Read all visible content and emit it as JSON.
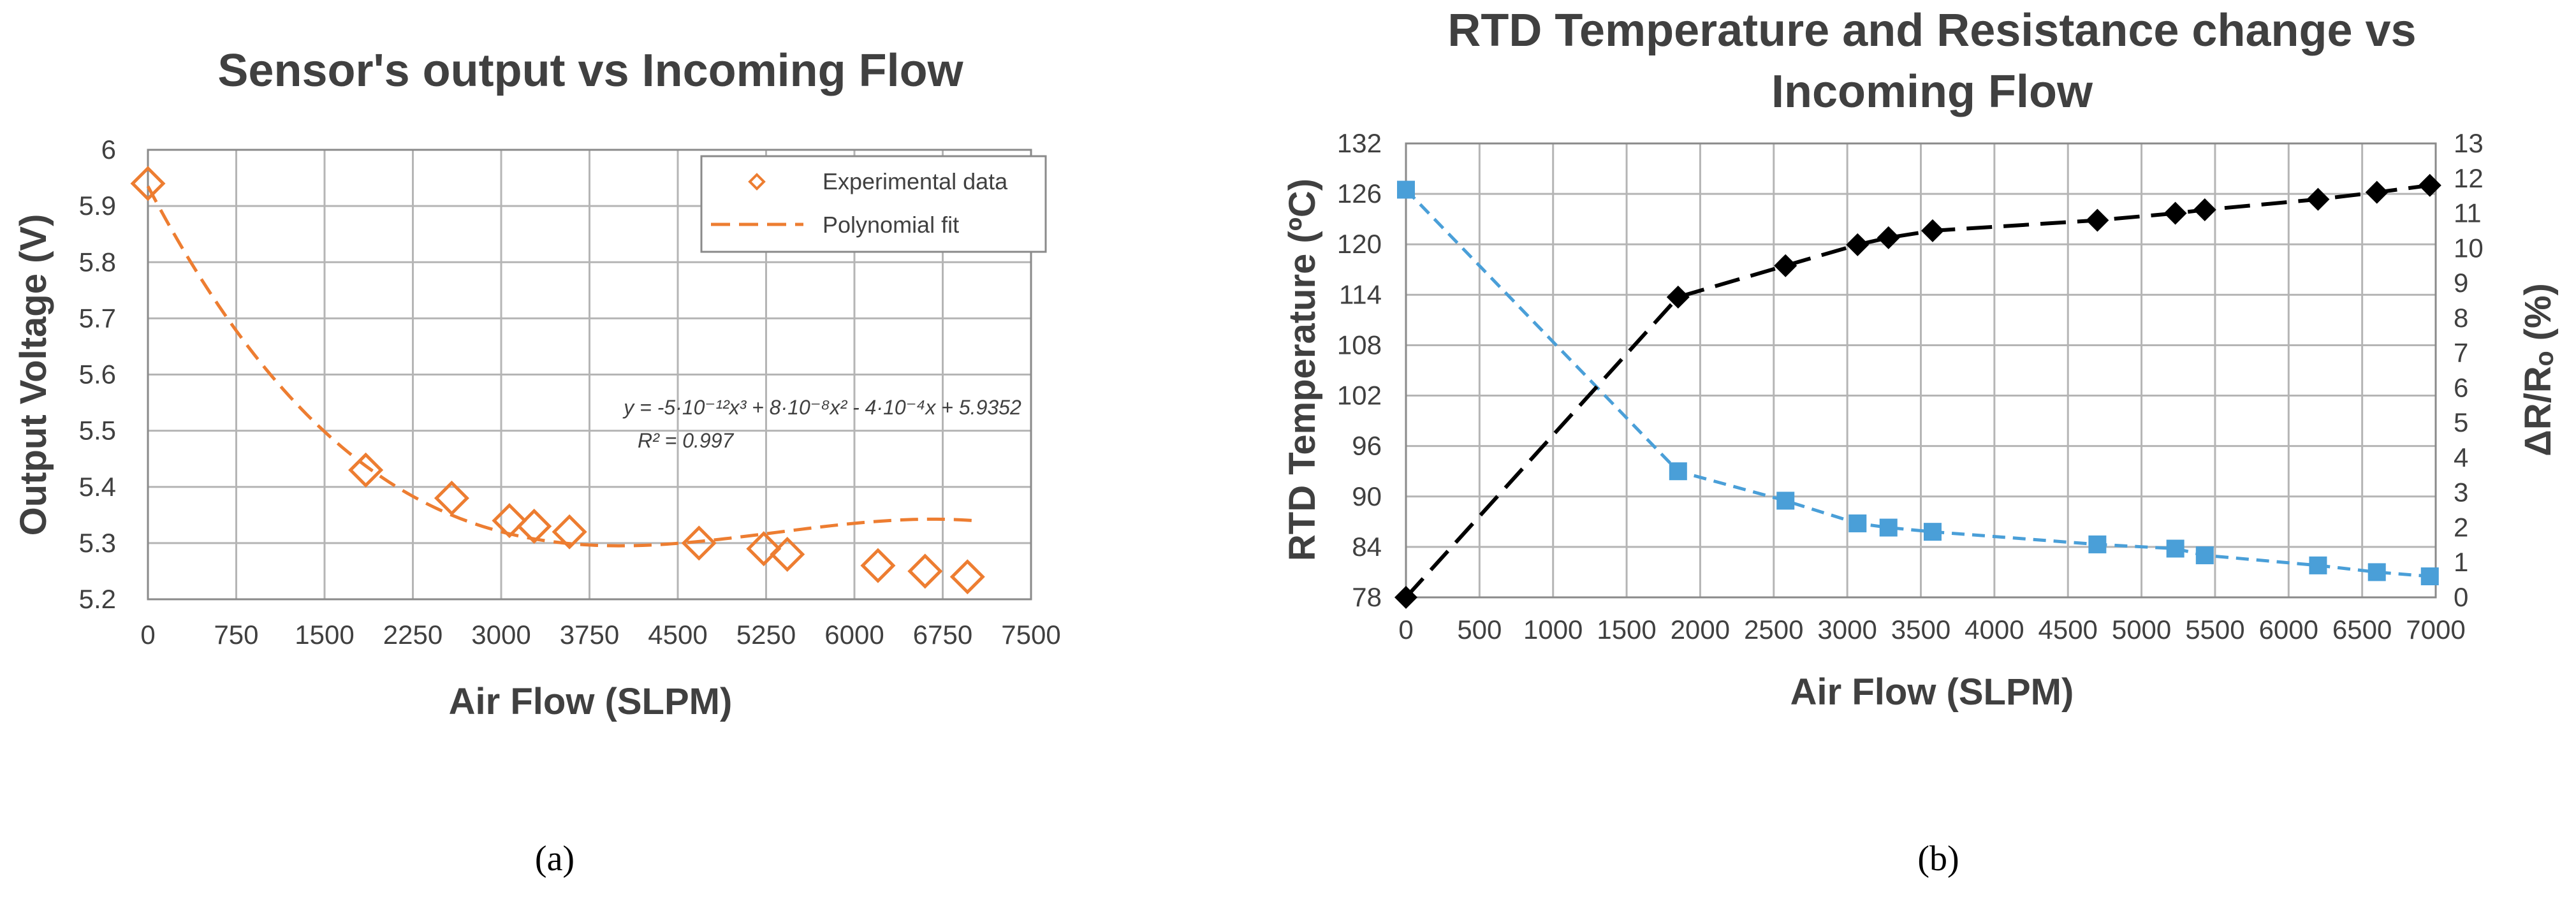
{
  "chart_data": [
    {
      "type": "scatter",
      "title": "Sensor's output vs Incoming Flow",
      "xlabel": "Air Flow (SLPM)",
      "ylabel": "Output Voltage (V)",
      "xlim": [
        0,
        7500
      ],
      "ylim": [
        5.2,
        6.0
      ],
      "x_ticks": [
        0,
        750,
        1500,
        2250,
        3000,
        3750,
        4500,
        5250,
        6000,
        6750,
        7500
      ],
      "x_tick_labels": [
        "0",
        "750",
        "1500",
        "2250",
        "3000",
        "3750",
        "4500",
        "5250",
        "6000",
        "6750",
        "7500"
      ],
      "y_ticks": [
        5.2,
        5.3,
        5.4,
        5.5,
        5.6,
        5.7,
        5.8,
        5.9,
        6.0
      ],
      "y_tick_labels": [
        "5.2",
        "5.3",
        "5.4",
        "5.5",
        "5.6",
        "5.7",
        "5.8",
        "5.9",
        "6"
      ],
      "grid": true,
      "legend_position": "top-right",
      "series": [
        {
          "name": "Experimental data",
          "kind": "markers",
          "marker": "open-diamond",
          "color": "#ED7D31",
          "x": [
            0,
            1850,
            2580,
            3070,
            3280,
            3580,
            4680,
            5230,
            5430,
            6200,
            6600,
            6960
          ],
          "y": [
            5.94,
            5.43,
            5.38,
            5.34,
            5.33,
            5.32,
            5.3,
            5.29,
            5.28,
            5.26,
            5.25,
            5.24
          ]
        },
        {
          "name": "Polynomial fit",
          "kind": "dashed-line",
          "color": "#ED7D31",
          "coefficients": [
            5.9352,
            -0.0004,
            8e-08,
            -5e-12
          ],
          "x_range": [
            0,
            7000
          ]
        }
      ],
      "annotations": {
        "equation": "y = -5·10⁻¹²x³ + 8·10⁻⁸x² - 4·10⁻⁴x + 5.9352",
        "r_squared": "R² = 0.997"
      },
      "caption": "(a)"
    },
    {
      "type": "line",
      "title_line1": "RTD Temperature and Resistance change vs",
      "title_line2": "Incoming Flow",
      "xlabel": "Air Flow (SLPM)",
      "ylabel_left": "RTD Temperature  (ºC)",
      "ylabel_right": "ΔR/Rₒ (%)",
      "xlim": [
        0,
        7000
      ],
      "ylim_left": [
        78,
        132
      ],
      "ylim_right": [
        0,
        13
      ],
      "x_ticks": [
        0,
        500,
        1000,
        1500,
        2000,
        2500,
        3000,
        3500,
        4000,
        4500,
        5000,
        5500,
        6000,
        6500,
        7000
      ],
      "x_tick_labels": [
        "0",
        "500",
        "1000",
        "1500",
        "2000",
        "2500",
        "3000",
        "3500",
        "4000",
        "4500",
        "5000",
        "5500",
        "6000",
        "6500",
        "7000"
      ],
      "y_left_ticks": [
        78,
        84,
        90,
        96,
        102,
        108,
        114,
        120,
        126,
        132
      ],
      "y_left_tick_labels": [
        "78",
        "84",
        "90",
        "96",
        "102",
        "108",
        "114",
        "120",
        "126",
        "132"
      ],
      "y_right_ticks": [
        0,
        1,
        2,
        3,
        4,
        5,
        6,
        7,
        8,
        9,
        10,
        11,
        12,
        13
      ],
      "y_right_tick_labels": [
        "0",
        "1",
        "2",
        "3",
        "4",
        "5",
        "6",
        "7",
        "8",
        "9",
        "10",
        "11",
        "12",
        "13"
      ],
      "grid": true,
      "series": [
        {
          "name": "RTD Temperature",
          "axis": "left",
          "marker": "square",
          "line": "dashed",
          "color": "#4A9FD8",
          "x": [
            0,
            1850,
            2580,
            3070,
            3280,
            3580,
            4700,
            5230,
            5430,
            6200,
            6600,
            6960
          ],
          "y": [
            126.5,
            93.0,
            89.5,
            86.8,
            86.3,
            85.8,
            84.3,
            83.8,
            83.0,
            81.8,
            81.0,
            80.5
          ]
        },
        {
          "name": "ΔR/Ro",
          "axis": "right",
          "marker": "diamond",
          "line": "dashed",
          "color": "#000000",
          "x": [
            0,
            1850,
            2580,
            3070,
            3280,
            3580,
            4700,
            5230,
            5430,
            6200,
            6600,
            6960
          ],
          "y": [
            0.0,
            8.6,
            9.5,
            10.1,
            10.3,
            10.5,
            10.8,
            11.0,
            11.1,
            11.4,
            11.6,
            11.8
          ]
        }
      ],
      "caption": "(b)"
    }
  ]
}
